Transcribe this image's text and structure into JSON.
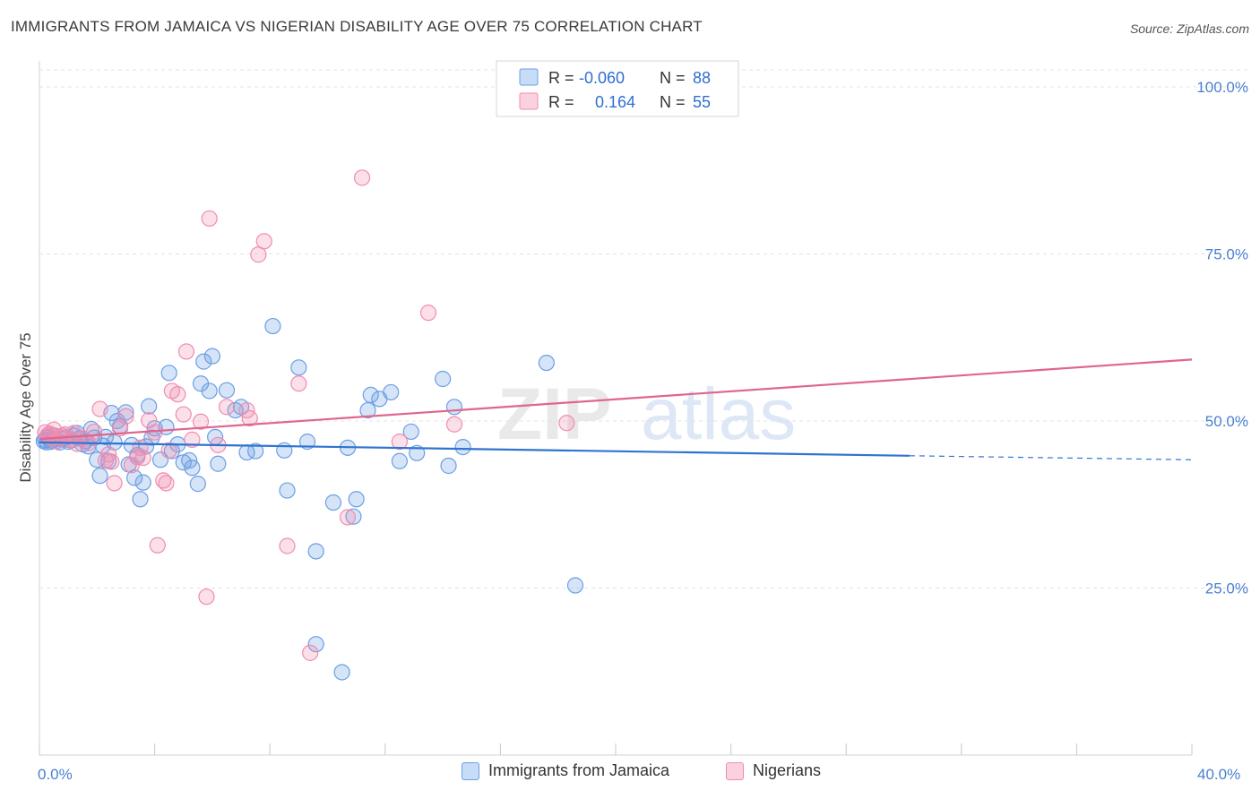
{
  "header": {
    "title": "IMMIGRANTS FROM JAMAICA VS NIGERIAN DISABILITY AGE OVER 75 CORRELATION CHART",
    "source": "Source: ZipAtlas.com"
  },
  "watermark": {
    "zip": "ZIP",
    "atlas": "atlas"
  },
  "legend": {
    "rows": [
      {
        "r_label": "R =",
        "r_value": "-0.060",
        "n_label": "N =",
        "n_value": "88",
        "color": "#6b9fe4"
      },
      {
        "r_label": "R =",
        "r_value": "0.164",
        "n_label": "N =",
        "n_value": "55",
        "color": "#f08cb0"
      }
    ]
  },
  "bottom_legend": [
    {
      "label": "Immigrants from Jamaica",
      "color": "#6b9fe4"
    },
    {
      "label": "Nigerians",
      "color": "#f08cb0"
    }
  ],
  "chart_data": {
    "type": "scatter",
    "title": "IMMIGRANTS FROM JAMAICA VS NIGERIAN DISABILITY AGE OVER 75 CORRELATION CHART",
    "xlabel": "",
    "ylabel": "Disability Age Over 75",
    "xlim": [
      0,
      40
    ],
    "ylim": [
      0,
      105
    ],
    "x_tick_labels": [
      "0.0%",
      "40.0%"
    ],
    "y_ticks": [
      25,
      50,
      75,
      100
    ],
    "y_tick_labels": [
      "25.0%",
      "50.0%",
      "75.0%",
      "100.0%"
    ],
    "grid": true,
    "legend_position": "top-center",
    "series": [
      {
        "name": "Immigrants from Jamaica",
        "color": "#6b9fe4",
        "line_color": "#2f74d0",
        "trend": {
          "x": [
            0,
            30.2
          ],
          "y": [
            46.8,
            44.8
          ],
          "dashed_to_x": 40,
          "dashed_to_y": 44.2
        },
        "points": [
          [
            0.2,
            47.2
          ],
          [
            0.3,
            47.6
          ],
          [
            0.4,
            46.9
          ],
          [
            0.5,
            47.8
          ],
          [
            0.6,
            47.0
          ],
          [
            0.7,
            46.8
          ],
          [
            0.8,
            47.3
          ],
          [
            0.9,
            47.5
          ],
          [
            1.0,
            46.9
          ],
          [
            1.1,
            47.1
          ],
          [
            1.2,
            47.8
          ],
          [
            1.3,
            48.2
          ],
          [
            1.4,
            47.4
          ],
          [
            1.5,
            46.5
          ],
          [
            1.6,
            47.0
          ],
          [
            1.7,
            46.2
          ],
          [
            1.8,
            48.8
          ],
          [
            1.9,
            47.5
          ],
          [
            2.0,
            44.2
          ],
          [
            2.1,
            41.8
          ],
          [
            2.2,
            46.3
          ],
          [
            2.3,
            47.6
          ],
          [
            2.4,
            44.0
          ],
          [
            2.5,
            51.2
          ],
          [
            2.6,
            46.8
          ],
          [
            2.7,
            50.0
          ],
          [
            2.8,
            49.2
          ],
          [
            3.0,
            51.3
          ],
          [
            3.1,
            43.5
          ],
          [
            3.2,
            46.4
          ],
          [
            3.3,
            41.5
          ],
          [
            3.4,
            44.9
          ],
          [
            3.5,
            38.3
          ],
          [
            3.6,
            40.8
          ],
          [
            3.7,
            46.2
          ],
          [
            3.8,
            52.2
          ],
          [
            3.9,
            47.5
          ],
          [
            4.0,
            48.9
          ],
          [
            4.2,
            44.2
          ],
          [
            4.4,
            49.1
          ],
          [
            4.5,
            57.2
          ],
          [
            4.6,
            45.5
          ],
          [
            4.8,
            46.5
          ],
          [
            5.0,
            43.8
          ],
          [
            5.2,
            44.1
          ],
          [
            5.3,
            43.0
          ],
          [
            5.5,
            40.6
          ],
          [
            5.6,
            55.6
          ],
          [
            5.7,
            58.9
          ],
          [
            5.9,
            54.5
          ],
          [
            6.0,
            59.7
          ],
          [
            6.1,
            47.6
          ],
          [
            6.2,
            43.6
          ],
          [
            6.5,
            54.6
          ],
          [
            6.8,
            51.6
          ],
          [
            7.0,
            52.1
          ],
          [
            7.2,
            45.3
          ],
          [
            7.5,
            45.5
          ],
          [
            8.1,
            64.2
          ],
          [
            8.5,
            45.6
          ],
          [
            8.6,
            39.6
          ],
          [
            9.0,
            58.0
          ],
          [
            9.3,
            46.9
          ],
          [
            9.6,
            30.5
          ],
          [
            10.2,
            37.8
          ],
          [
            10.7,
            46.0
          ],
          [
            10.9,
            35.7
          ],
          [
            11.0,
            38.3
          ],
          [
            11.4,
            51.6
          ],
          [
            11.5,
            53.9
          ],
          [
            11.8,
            53.3
          ],
          [
            12.2,
            54.3
          ],
          [
            12.5,
            44.0
          ],
          [
            12.9,
            48.4
          ],
          [
            13.1,
            45.2
          ],
          [
            14.0,
            56.3
          ],
          [
            14.2,
            43.3
          ],
          [
            14.4,
            52.1
          ],
          [
            14.7,
            46.1
          ],
          [
            17.6,
            58.7
          ],
          [
            18.6,
            25.4
          ],
          [
            9.6,
            16.6
          ],
          [
            10.5,
            12.4
          ],
          [
            0.15,
            47.0
          ],
          [
            0.25,
            46.8
          ],
          [
            0.35,
            47.4
          ],
          [
            0.45,
            47.1
          ],
          [
            0.55,
            47.3
          ]
        ]
      },
      {
        "name": "Nigerians",
        "color": "#f08cb0",
        "line_color": "#e0658f",
        "trend": {
          "x": [
            0,
            40
          ],
          "y": [
            47.3,
            59.2
          ]
        },
        "points": [
          [
            0.2,
            48.3
          ],
          [
            0.3,
            47.9
          ],
          [
            0.4,
            47.5
          ],
          [
            0.5,
            48.7
          ],
          [
            0.6,
            47.0
          ],
          [
            0.7,
            47.6
          ],
          [
            0.9,
            48.0
          ],
          [
            1.1,
            47.2
          ],
          [
            1.3,
            46.6
          ],
          [
            1.5,
            47.4
          ],
          [
            1.7,
            46.7
          ],
          [
            1.9,
            48.4
          ],
          [
            2.1,
            51.8
          ],
          [
            2.3,
            44.1
          ],
          [
            2.5,
            43.9
          ],
          [
            2.6,
            40.7
          ],
          [
            2.8,
            48.9
          ],
          [
            3.0,
            50.7
          ],
          [
            3.2,
            43.4
          ],
          [
            3.4,
            44.6
          ],
          [
            3.6,
            44.5
          ],
          [
            3.8,
            50.1
          ],
          [
            4.0,
            48.3
          ],
          [
            4.1,
            31.4
          ],
          [
            4.3,
            41.1
          ],
          [
            4.4,
            40.7
          ],
          [
            4.5,
            45.6
          ],
          [
            4.6,
            54.5
          ],
          [
            4.8,
            54.0
          ],
          [
            5.0,
            51.0
          ],
          [
            5.1,
            60.4
          ],
          [
            5.3,
            47.2
          ],
          [
            5.6,
            49.9
          ],
          [
            5.8,
            23.7
          ],
          [
            5.9,
            80.3
          ],
          [
            6.2,
            46.4
          ],
          [
            6.5,
            52.1
          ],
          [
            7.2,
            51.6
          ],
          [
            7.3,
            50.4
          ],
          [
            7.6,
            74.9
          ],
          [
            7.8,
            76.9
          ],
          [
            8.6,
            31.3
          ],
          [
            9.0,
            55.6
          ],
          [
            9.4,
            15.3
          ],
          [
            10.7,
            35.6
          ],
          [
            11.2,
            86.4
          ],
          [
            12.5,
            46.9
          ],
          [
            13.5,
            66.2
          ],
          [
            14.4,
            49.5
          ],
          [
            18.3,
            49.7
          ],
          [
            0.35,
            48.1
          ],
          [
            0.8,
            47.8
          ],
          [
            1.2,
            48.2
          ],
          [
            2.4,
            45.0
          ],
          [
            3.5,
            46.0
          ]
        ]
      }
    ]
  }
}
